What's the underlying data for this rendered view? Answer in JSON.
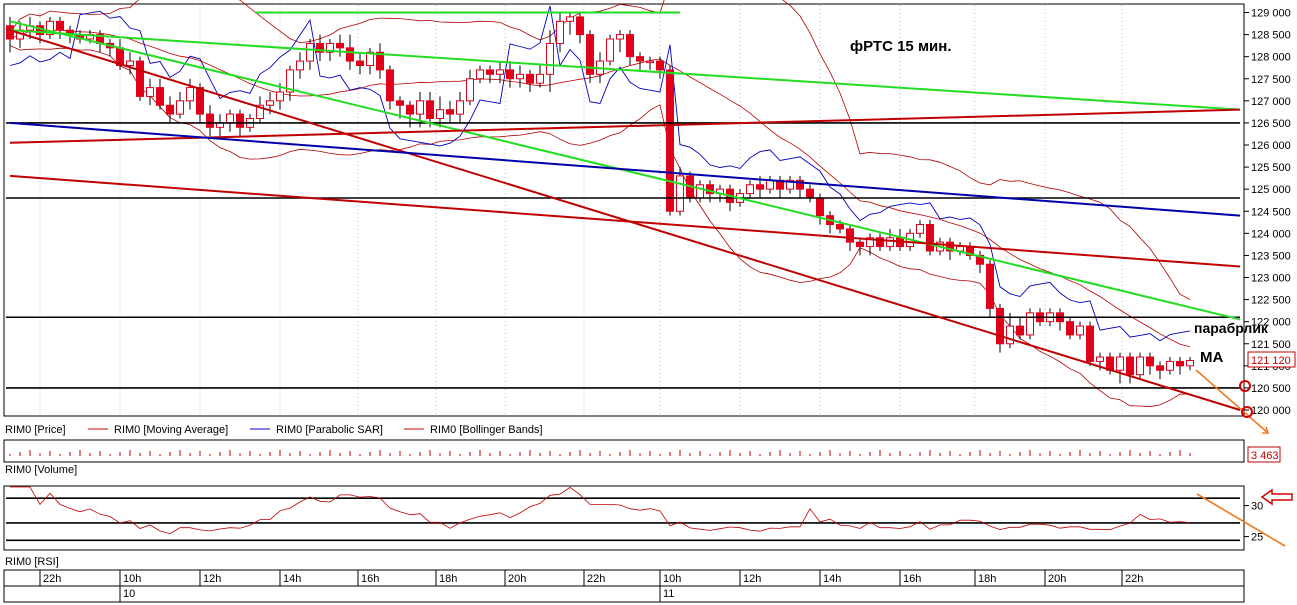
{
  "chart_data": [
    {
      "type": "candlestick",
      "title": "фРТС  15 мин.",
      "ylim": [
        119800,
        129100
      ],
      "y_ticks": [
        "129 000",
        "128 500",
        "128 000",
        "127 500",
        "127 000",
        "126 500",
        "126 000",
        "125 500",
        "125 000",
        "124 500",
        "124 000",
        "123 500",
        "123 000",
        "122 500",
        "122 000",
        "121 500",
        "121 000",
        "120 500",
        "120 000"
      ],
      "y_tick_values": [
        129000,
        128500,
        128000,
        127500,
        127000,
        126500,
        126000,
        125500,
        125000,
        124500,
        124000,
        123500,
        123000,
        122500,
        122000,
        121500,
        121000,
        120500,
        120000
      ],
      "last_price_label": "121 120",
      "annotations": [
        "парабрлик",
        "MA"
      ],
      "legend": [
        "RIM0 [Price]",
        "RIM0 [Moving Average]",
        "RIM0 [Parabolic SAR]",
        "RIM0 [Bollinger Bands]"
      ],
      "horizontal_levels": [
        126500,
        124800,
        122100,
        120500
      ],
      "candles": [
        {
          "o": 128700,
          "c": 128400,
          "h": 128900,
          "l": 128100
        },
        {
          "o": 128400,
          "c": 128600,
          "h": 128800,
          "l": 128200
        },
        {
          "o": 128600,
          "c": 128700,
          "h": 128900,
          "l": 128400
        },
        {
          "o": 128700,
          "c": 128500,
          "h": 128800,
          "l": 128300
        },
        {
          "o": 128500,
          "c": 128800,
          "h": 128900,
          "l": 128400
        },
        {
          "o": 128800,
          "c": 128600,
          "h": 128900,
          "l": 128400
        },
        {
          "o": 128600,
          "c": 128500,
          "h": 128700,
          "l": 128300
        },
        {
          "o": 128500,
          "c": 128400,
          "h": 128600,
          "l": 128300
        },
        {
          "o": 128400,
          "c": 128500,
          "h": 128600,
          "l": 128300
        },
        {
          "o": 128500,
          "c": 128300,
          "h": 128600,
          "l": 128100
        },
        {
          "o": 128300,
          "c": 128200,
          "h": 128400,
          "l": 128000
        },
        {
          "o": 128200,
          "c": 127800,
          "h": 128400,
          "l": 127700
        },
        {
          "o": 127800,
          "c": 127900,
          "h": 128100,
          "l": 127600
        },
        {
          "o": 127900,
          "c": 127100,
          "h": 128000,
          "l": 127000
        },
        {
          "o": 127100,
          "c": 127300,
          "h": 127500,
          "l": 126900
        },
        {
          "o": 127300,
          "c": 126900,
          "h": 127500,
          "l": 126800
        },
        {
          "o": 126900,
          "c": 126700,
          "h": 127100,
          "l": 126500
        },
        {
          "o": 126700,
          "c": 127000,
          "h": 127200,
          "l": 126600
        },
        {
          "o": 127000,
          "c": 127300,
          "h": 127500,
          "l": 126800
        },
        {
          "o": 127300,
          "c": 126700,
          "h": 127400,
          "l": 126500
        },
        {
          "o": 126700,
          "c": 126400,
          "h": 126900,
          "l": 126200
        },
        {
          "o": 126400,
          "c": 126500,
          "h": 126700,
          "l": 126200
        },
        {
          "o": 126500,
          "c": 126700,
          "h": 126800,
          "l": 126300
        },
        {
          "o": 126700,
          "c": 126400,
          "h": 126800,
          "l": 126200
        },
        {
          "o": 126400,
          "c": 126600,
          "h": 126700,
          "l": 126300
        },
        {
          "o": 126600,
          "c": 126900,
          "h": 127100,
          "l": 126500
        },
        {
          "o": 126900,
          "c": 127000,
          "h": 127200,
          "l": 126700
        },
        {
          "o": 127000,
          "c": 127200,
          "h": 127400,
          "l": 126800
        },
        {
          "o": 127200,
          "c": 127700,
          "h": 127800,
          "l": 127000
        },
        {
          "o": 127700,
          "c": 127900,
          "h": 128100,
          "l": 127500
        },
        {
          "o": 127900,
          "c": 128300,
          "h": 128400,
          "l": 127700
        },
        {
          "o": 128300,
          "c": 128100,
          "h": 128500,
          "l": 127900
        },
        {
          "o": 128100,
          "c": 128300,
          "h": 128400,
          "l": 127900
        },
        {
          "o": 128300,
          "c": 128200,
          "h": 128500,
          "l": 128000
        },
        {
          "o": 128200,
          "c": 127900,
          "h": 128500,
          "l": 127700
        },
        {
          "o": 127900,
          "c": 127800,
          "h": 128100,
          "l": 127600
        },
        {
          "o": 127800,
          "c": 128100,
          "h": 128200,
          "l": 127600
        },
        {
          "o": 128100,
          "c": 127700,
          "h": 128300,
          "l": 127500
        },
        {
          "o": 127700,
          "c": 127000,
          "h": 127800,
          "l": 126800
        },
        {
          "o": 127000,
          "c": 126900,
          "h": 127100,
          "l": 126600
        },
        {
          "o": 126900,
          "c": 126700,
          "h": 127000,
          "l": 126400
        },
        {
          "o": 126700,
          "c": 127000,
          "h": 127200,
          "l": 126400
        },
        {
          "o": 127000,
          "c": 126600,
          "h": 127200,
          "l": 126400
        },
        {
          "o": 126600,
          "c": 126800,
          "h": 127100,
          "l": 126400
        },
        {
          "o": 126800,
          "c": 126700,
          "h": 127000,
          "l": 126500
        },
        {
          "o": 126700,
          "c": 127000,
          "h": 127200,
          "l": 126500
        },
        {
          "o": 127000,
          "c": 127500,
          "h": 127700,
          "l": 126900
        },
        {
          "o": 127500,
          "c": 127700,
          "h": 127800,
          "l": 127400
        },
        {
          "o": 127700,
          "c": 127600,
          "h": 127800,
          "l": 127400
        },
        {
          "o": 127600,
          "c": 127700,
          "h": 127900,
          "l": 127400
        },
        {
          "o": 127700,
          "c": 127500,
          "h": 127900,
          "l": 127300
        },
        {
          "o": 127500,
          "c": 127600,
          "h": 127800,
          "l": 127300
        },
        {
          "o": 127600,
          "c": 127400,
          "h": 127700,
          "l": 127200
        },
        {
          "o": 127400,
          "c": 127600,
          "h": 127800,
          "l": 127300
        },
        {
          "o": 127600,
          "c": 128300,
          "h": 128600,
          "l": 127200
        },
        {
          "o": 128300,
          "c": 128800,
          "h": 129000,
          "l": 128100
        },
        {
          "o": 128800,
          "c": 128900,
          "h": 129000,
          "l": 128500
        },
        {
          "o": 128900,
          "c": 128500,
          "h": 129000,
          "l": 128300
        },
        {
          "o": 128500,
          "c": 127600,
          "h": 128600,
          "l": 127400
        },
        {
          "o": 127600,
          "c": 127900,
          "h": 128100,
          "l": 127400
        },
        {
          "o": 127900,
          "c": 128400,
          "h": 128500,
          "l": 127800
        },
        {
          "o": 128400,
          "c": 128500,
          "h": 128600,
          "l": 128100
        },
        {
          "o": 128500,
          "c": 128000,
          "h": 128600,
          "l": 127800
        },
        {
          "o": 128000,
          "c": 127900,
          "h": 128100,
          "l": 127700
        },
        {
          "o": 127900,
          "c": 127900,
          "h": 128000,
          "l": 127700
        },
        {
          "o": 127900,
          "c": 127700,
          "h": 128000,
          "l": 127500
        },
        {
          "o": 127700,
          "c": 124500,
          "h": 127800,
          "l": 124400
        },
        {
          "o": 124500,
          "c": 125300,
          "h": 125500,
          "l": 124400
        },
        {
          "o": 125300,
          "c": 124800,
          "h": 125400,
          "l": 124700
        },
        {
          "o": 124800,
          "c": 125100,
          "h": 125200,
          "l": 124700
        },
        {
          "o": 125100,
          "c": 124900,
          "h": 125200,
          "l": 124700
        },
        {
          "o": 124900,
          "c": 125000,
          "h": 125100,
          "l": 124700
        },
        {
          "o": 125000,
          "c": 124700,
          "h": 125100,
          "l": 124500
        },
        {
          "o": 124700,
          "c": 124900,
          "h": 125000,
          "l": 124600
        },
        {
          "o": 124900,
          "c": 125100,
          "h": 125200,
          "l": 124800
        },
        {
          "o": 125100,
          "c": 125000,
          "h": 125300,
          "l": 124800
        },
        {
          "o": 125000,
          "c": 125200,
          "h": 125300,
          "l": 124900
        },
        {
          "o": 125200,
          "c": 125000,
          "h": 125300,
          "l": 124800
        },
        {
          "o": 125000,
          "c": 125200,
          "h": 125300,
          "l": 124900
        },
        {
          "o": 125200,
          "c": 125000,
          "h": 125300,
          "l": 124800
        },
        {
          "o": 125000,
          "c": 124800,
          "h": 125100,
          "l": 124700
        },
        {
          "o": 124800,
          "c": 124400,
          "h": 124900,
          "l": 124200
        },
        {
          "o": 124400,
          "c": 124200,
          "h": 124500,
          "l": 124000
        },
        {
          "o": 124200,
          "c": 124100,
          "h": 124300,
          "l": 124000
        },
        {
          "o": 124100,
          "c": 123800,
          "h": 124200,
          "l": 123600
        },
        {
          "o": 123800,
          "c": 123700,
          "h": 123900,
          "l": 123500
        },
        {
          "o": 123700,
          "c": 123900,
          "h": 124000,
          "l": 123500
        },
        {
          "o": 123900,
          "c": 123700,
          "h": 124000,
          "l": 123600
        },
        {
          "o": 123700,
          "c": 123900,
          "h": 124100,
          "l": 123600
        },
        {
          "o": 123900,
          "c": 123700,
          "h": 124100,
          "l": 123600
        },
        {
          "o": 123700,
          "c": 124000,
          "h": 124100,
          "l": 123600
        },
        {
          "o": 124000,
          "c": 124200,
          "h": 124300,
          "l": 123900
        },
        {
          "o": 124200,
          "c": 123600,
          "h": 124300,
          "l": 123500
        },
        {
          "o": 123600,
          "c": 123800,
          "h": 123900,
          "l": 123500
        },
        {
          "o": 123800,
          "c": 123600,
          "h": 123900,
          "l": 123400
        },
        {
          "o": 123600,
          "c": 123700,
          "h": 123800,
          "l": 123500
        },
        {
          "o": 123700,
          "c": 123500,
          "h": 123800,
          "l": 123400
        },
        {
          "o": 123500,
          "c": 123300,
          "h": 123600,
          "l": 123100
        },
        {
          "o": 123300,
          "c": 122300,
          "h": 123400,
          "l": 122100
        },
        {
          "o": 122300,
          "c": 121500,
          "h": 122400,
          "l": 121300
        },
        {
          "o": 121500,
          "c": 121900,
          "h": 122200,
          "l": 121400
        },
        {
          "o": 121900,
          "c": 121700,
          "h": 122100,
          "l": 121600
        },
        {
          "o": 121700,
          "c": 122200,
          "h": 122300,
          "l": 121600
        },
        {
          "o": 122200,
          "c": 122000,
          "h": 122300,
          "l": 121900
        },
        {
          "o": 122000,
          "c": 122200,
          "h": 122300,
          "l": 121900
        },
        {
          "o": 122200,
          "c": 122000,
          "h": 122300,
          "l": 121800
        },
        {
          "o": 122000,
          "c": 121700,
          "h": 122100,
          "l": 121600
        },
        {
          "o": 121700,
          "c": 121900,
          "h": 122000,
          "l": 121600
        },
        {
          "o": 121900,
          "c": 121100,
          "h": 122000,
          "l": 121000
        },
        {
          "o": 121100,
          "c": 121200,
          "h": 121300,
          "l": 120900
        },
        {
          "o": 121200,
          "c": 120900,
          "h": 121300,
          "l": 120800
        },
        {
          "o": 120900,
          "c": 121200,
          "h": 121300,
          "l": 120600
        },
        {
          "o": 121200,
          "c": 120800,
          "h": 121300,
          "l": 120600
        },
        {
          "o": 120800,
          "c": 121200,
          "h": 121300,
          "l": 120700
        },
        {
          "o": 121200,
          "c": 121000,
          "h": 121300,
          "l": 120800
        },
        {
          "o": 121000,
          "c": 120900,
          "h": 121100,
          "l": 120700
        },
        {
          "o": 120900,
          "c": 121100,
          "h": 121200,
          "l": 120800
        },
        {
          "o": 121100,
          "c": 121000,
          "h": 121200,
          "l": 120800
        },
        {
          "o": 121000,
          "c": 121120,
          "h": 121200,
          "l": 120900
        }
      ]
    },
    {
      "type": "bar",
      "legend": [
        "RIM0 [Volume]"
      ],
      "last_value_label": "3 463"
    },
    {
      "type": "line",
      "legend": [
        "RIM0 [RSI]"
      ],
      "y_ticks": [
        "30",
        "25"
      ],
      "y_tick_values": [
        30,
        25
      ],
      "horizontal_levels": [
        31.2,
        27.2,
        24.4
      ],
      "x_labels": [
        "22h",
        "10h",
        "12h",
        "14h",
        "16h",
        "18h",
        "20h",
        "22h",
        "10h",
        "12h",
        "14h",
        "16h",
        "18h",
        "20h",
        "22h"
      ],
      "date_labels": [
        "10",
        "11"
      ]
    }
  ],
  "colors": {
    "price_bear": "#e0001a",
    "price_bull": "#e0001a",
    "moving_average": "#c00000",
    "parabolic_sar": "#0000c0",
    "bollinger": "#b00000",
    "trend_green": "#22dd22",
    "trend_red": "#c00000",
    "trend_blue": "#0000aa",
    "level_black": "#000000",
    "annotation_orange": "#f07820",
    "marker_red": "#d00000"
  }
}
